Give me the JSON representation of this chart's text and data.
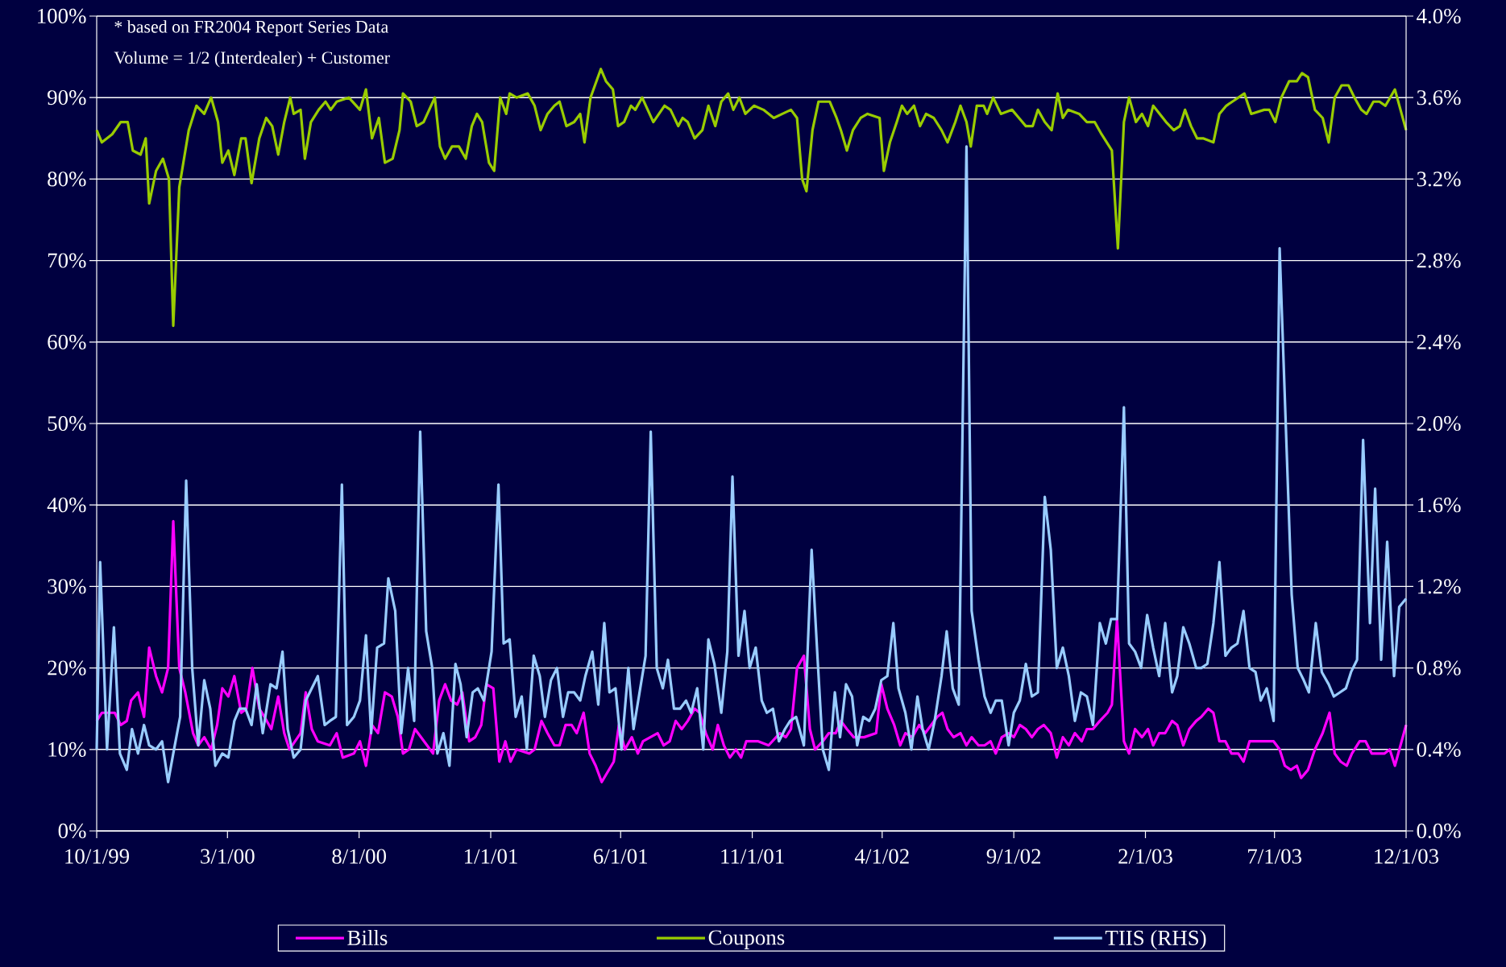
{
  "chart_data": {
    "type": "line",
    "annotations": [
      "*  based on FR2004 Report Series Data",
      "Volume = 1/2 (Interdealer) + Customer"
    ],
    "xlim": [
      "1999-10-01",
      "2003-12-01"
    ],
    "xticks": [
      {
        "value": "1999-10-01",
        "label": "10/1/99"
      },
      {
        "value": "2000-03-01",
        "label": "3/1/00"
      },
      {
        "value": "2000-08-01",
        "label": "8/1/00"
      },
      {
        "value": "2001-01-01",
        "label": "1/1/01"
      },
      {
        "value": "2001-06-01",
        "label": "6/1/01"
      },
      {
        "value": "2001-11-01",
        "label": "11/1/01"
      },
      {
        "value": "2002-04-01",
        "label": "4/1/02"
      },
      {
        "value": "2002-09-01",
        "label": "9/1/02"
      },
      {
        "value": "2003-02-01",
        "label": "2/1/03"
      },
      {
        "value": "2003-07-01",
        "label": "7/1/03"
      },
      {
        "value": "2003-12-01",
        "label": "12/1/03"
      }
    ],
    "ylim": [
      0,
      100
    ],
    "yticks": [
      {
        "value": 0,
        "label": "0%"
      },
      {
        "value": 10,
        "label": "10%"
      },
      {
        "value": 20,
        "label": "20%"
      },
      {
        "value": 30,
        "label": "30%"
      },
      {
        "value": 40,
        "label": "40%"
      },
      {
        "value": 50,
        "label": "50%"
      },
      {
        "value": 60,
        "label": "60%"
      },
      {
        "value": 70,
        "label": "70%"
      },
      {
        "value": 80,
        "label": "80%"
      },
      {
        "value": 90,
        "label": "90%"
      },
      {
        "value": 100,
        "label": "100%"
      }
    ],
    "y2lim": [
      0,
      4
    ],
    "y2ticks": [
      {
        "value": 0,
        "label": "0.0%"
      },
      {
        "value": 0.4,
        "label": "0.4%"
      },
      {
        "value": 0.8,
        "label": "0.8%"
      },
      {
        "value": 1.2,
        "label": "1.2%"
      },
      {
        "value": 1.6,
        "label": "1.6%"
      },
      {
        "value": 2.0,
        "label": "2.0%"
      },
      {
        "value": 2.4,
        "label": "2.4%"
      },
      {
        "value": 2.8,
        "label": "2.8%"
      },
      {
        "value": 3.2,
        "label": "3.2%"
      },
      {
        "value": 3.6,
        "label": "3.6%"
      },
      {
        "value": 4.0,
        "label": "4.0%"
      }
    ],
    "grid": "y",
    "legend": "bottom",
    "series": [
      {
        "name": "Bills",
        "color": "#ff00ff",
        "x": [
          "1999-10-01",
          "1999-10-07",
          "1999-10-22",
          "1999-10-29",
          "1999-11-05",
          "1999-11-10",
          "1999-11-18",
          "1999-11-25",
          "1999-12-01",
          "1999-12-09",
          "1999-12-16",
          "1999-12-23",
          "1999-12-29",
          "2000-01-05",
          "2000-01-12",
          "2000-01-21",
          "2000-01-27",
          "2000-02-03",
          "2000-02-11",
          "2000-02-18",
          "2000-02-24",
          "2000-03-02",
          "2000-03-09",
          "2000-03-17",
          "2000-03-23",
          "2000-03-30",
          "2000-04-07",
          "2000-04-13",
          "2000-04-21",
          "2000-04-29",
          "2000-05-06",
          "2000-05-12",
          "2000-05-25",
          "2000-05-31",
          "2000-06-07",
          "2000-06-14",
          "2000-06-28",
          "2000-07-06",
          "2000-07-13",
          "2000-07-26",
          "2000-08-02",
          "2000-08-09",
          "2000-08-16",
          "2000-08-23",
          "2000-08-31",
          "2000-09-08",
          "2000-09-15",
          "2000-09-21",
          "2000-09-28",
          "2000-10-05",
          "2000-10-19",
          "2000-10-26",
          "2000-11-02",
          "2000-11-09",
          "2000-11-16",
          "2000-11-23",
          "2000-11-29",
          "2000-12-07",
          "2000-12-14",
          "2000-12-21",
          "2000-12-27",
          "2001-01-04",
          "2001-01-11",
          "2001-01-18",
          "2001-01-24",
          "2001-01-31",
          "2001-02-15",
          "2001-02-21",
          "2001-03-01",
          "2001-03-08",
          "2001-03-16",
          "2001-03-22",
          "2001-03-29",
          "2001-04-05",
          "2001-04-11",
          "2001-04-19",
          "2001-04-26",
          "2001-05-03",
          "2001-05-10",
          "2001-05-24",
          "2001-05-30",
          "2001-06-06",
          "2001-06-14",
          "2001-06-21",
          "2001-06-27",
          "2001-07-14",
          "2001-07-21",
          "2001-07-28",
          "2001-08-04",
          "2001-08-11",
          "2001-08-18",
          "2001-08-26",
          "2001-09-01",
          "2001-09-08",
          "2001-09-16",
          "2001-09-22",
          "2001-09-29",
          "2001-10-06",
          "2001-10-13",
          "2001-10-19",
          "2001-10-25",
          "2001-11-08",
          "2001-11-20",
          "2001-12-03",
          "2001-12-10",
          "2001-12-16",
          "2001-12-23",
          "2001-12-31",
          "2002-01-07",
          "2002-01-13",
          "2002-01-22",
          "2002-01-29",
          "2002-02-06",
          "2002-02-12",
          "2002-02-19",
          "2002-02-27",
          "2002-03-11",
          "2002-03-25",
          "2002-03-31",
          "2002-04-07",
          "2002-04-15",
          "2002-04-22",
          "2002-04-28",
          "2002-05-06",
          "2002-05-14",
          "2002-05-21",
          "2002-05-28",
          "2002-06-04",
          "2002-06-10",
          "2002-06-16",
          "2002-06-23",
          "2002-07-01",
          "2002-07-08",
          "2002-07-14",
          "2002-07-22",
          "2002-07-29",
          "2002-08-05",
          "2002-08-11",
          "2002-08-18",
          "2002-08-26",
          "2002-09-01",
          "2002-09-08",
          "2002-09-15",
          "2002-09-22",
          "2002-09-29",
          "2002-10-06",
          "2002-10-14",
          "2002-10-21",
          "2002-10-28",
          "2002-11-04",
          "2002-11-11",
          "2002-11-19",
          "2002-11-25",
          "2002-12-02",
          "2002-12-10",
          "2002-12-19",
          "2002-12-24",
          "2002-12-30",
          "2003-01-07",
          "2003-01-13",
          "2003-01-20",
          "2003-01-28",
          "2003-02-04",
          "2003-02-10",
          "2003-02-17",
          "2003-02-24",
          "2003-03-04",
          "2003-03-10",
          "2003-03-17",
          "2003-03-24",
          "2003-04-01",
          "2003-04-07",
          "2003-04-15",
          "2003-04-21",
          "2003-04-28",
          "2003-05-05",
          "2003-05-12",
          "2003-05-20",
          "2003-05-26",
          "2003-06-02",
          "2003-06-30",
          "2003-07-07",
          "2003-07-13",
          "2003-07-20",
          "2003-07-27",
          "2003-08-01",
          "2003-08-09",
          "2003-08-17",
          "2003-08-26",
          "2003-09-03",
          "2003-09-09",
          "2003-09-16",
          "2003-09-23",
          "2003-09-29",
          "2003-10-08",
          "2003-10-15",
          "2003-10-22",
          "2003-11-06",
          "2003-11-12",
          "2003-11-18",
          "2003-12-01"
        ],
        "values": [
          13.5,
          14.5,
          14.5,
          13,
          13.5,
          16,
          17,
          14,
          22.5,
          19,
          17,
          20,
          38,
          20,
          17,
          12,
          10.5,
          11.5,
          10,
          13,
          17.5,
          16.5,
          19,
          14.5,
          15,
          20,
          15,
          14,
          12.5,
          16.5,
          12,
          10,
          12,
          17,
          12.5,
          11,
          10.5,
          12,
          9,
          9.5,
          11,
          8,
          13,
          12,
          17,
          16.5,
          14,
          9.5,
          10,
          12.5,
          10.5,
          9.5,
          16,
          18,
          16,
          15.5,
          17,
          11,
          11.5,
          13,
          18,
          17.5,
          8.5,
          11,
          8.5,
          10,
          9.5,
          10,
          13.5,
          12,
          10.5,
          10.5,
          13,
          13,
          12,
          14.5,
          9.5,
          8,
          6,
          8.5,
          13,
          10,
          11.5,
          9.5,
          11,
          12,
          10.5,
          11,
          13.5,
          12.5,
          13.5,
          15,
          14.5,
          12,
          10,
          13,
          10.5,
          9,
          10,
          9,
          11,
          11,
          10.5,
          12,
          11.5,
          12.5,
          20,
          21.5,
          12.5,
          10,
          11,
          12,
          12,
          13.5,
          12.5,
          11.5,
          11.5,
          12,
          18,
          15,
          13,
          10.5,
          12,
          11.5,
          13,
          12,
          13,
          14,
          14.5,
          12.5,
          11.5,
          12,
          10.5,
          11.5,
          10.5,
          10.5,
          11,
          9.5,
          11.5,
          12,
          11.5,
          13,
          12.5,
          11.5,
          12.5,
          13,
          12,
          9,
          11.5,
          10.5,
          12,
          11,
          12.5,
          12.5,
          13.5,
          14.5,
          15.5,
          26,
          11,
          9.5,
          12.5,
          11.5,
          12.5,
          10.5,
          12,
          12,
          13.5,
          13,
          10.5,
          12.5,
          13.5,
          14,
          15,
          14.5,
          11,
          11,
          9.5,
          9.5,
          8.5,
          11,
          11,
          10,
          8,
          7.5,
          8,
          6.5,
          7.5,
          10,
          12,
          14.5,
          9.5,
          8.5,
          8,
          9.5,
          11,
          11,
          9.5,
          9.5,
          10,
          8,
          13
        ]
      },
      {
        "name": "Coupons",
        "color": "#99cc00",
        "x": [
          "1999-10-01",
          "1999-10-07",
          "1999-10-19",
          "1999-10-29",
          "1999-11-06",
          "1999-11-12",
          "1999-11-21",
          "1999-11-27",
          "1999-12-01",
          "1999-12-09",
          "1999-12-17",
          "1999-12-24",
          "1999-12-29",
          "2000-01-05",
          "2000-01-16",
          "2000-01-25",
          "2000-02-03",
          "2000-02-11",
          "2000-02-19",
          "2000-02-24",
          "2000-03-02",
          "2000-03-09",
          "2000-03-17",
          "2000-03-22",
          "2000-03-29",
          "2000-04-07",
          "2000-04-15",
          "2000-04-22",
          "2000-04-29",
          "2000-05-06",
          "2000-05-13",
          "2000-05-17",
          "2000-05-25",
          "2000-05-30",
          "2000-06-06",
          "2000-06-15",
          "2000-06-23",
          "2000-06-29",
          "2000-07-06",
          "2000-07-20",
          "2000-08-02",
          "2000-08-09",
          "2000-08-16",
          "2000-08-24",
          "2000-08-31",
          "2000-09-09",
          "2000-09-17",
          "2000-09-21",
          "2000-09-30",
          "2000-10-07",
          "2000-10-15",
          "2000-10-28",
          "2000-11-03",
          "2000-11-09",
          "2000-11-17",
          "2000-11-25",
          "2000-12-03",
          "2000-12-10",
          "2000-12-16",
          "2000-12-22",
          "2000-12-30",
          "2001-01-05",
          "2001-01-12",
          "2001-01-19",
          "2001-01-23",
          "2001-01-31",
          "2001-02-13",
          "2001-02-21",
          "2001-02-28",
          "2001-03-08",
          "2001-03-16",
          "2001-03-22",
          "2001-03-30",
          "2001-04-08",
          "2001-04-15",
          "2001-04-20",
          "2001-04-27",
          "2001-05-09",
          "2001-05-15",
          "2001-05-23",
          "2001-05-29",
          "2001-06-05",
          "2001-06-13",
          "2001-06-18",
          "2001-06-26",
          "2001-07-09",
          "2001-07-22",
          "2001-07-29",
          "2001-08-07",
          "2001-08-12",
          "2001-08-18",
          "2001-08-26",
          "2001-09-04",
          "2001-09-11",
          "2001-09-19",
          "2001-09-26",
          "2001-10-04",
          "2001-10-10",
          "2001-10-17",
          "2001-10-24",
          "2001-11-03",
          "2001-11-14",
          "2001-11-26",
          "2001-12-06",
          "2001-12-16",
          "2001-12-23",
          "2001-12-29",
          "2002-01-03",
          "2002-01-10",
          "2002-01-17",
          "2002-01-30",
          "2002-02-07",
          "2002-02-12",
          "2002-02-19",
          "2002-02-26",
          "2002-03-07",
          "2002-03-15",
          "2002-03-29",
          "2002-04-03",
          "2002-04-10",
          "2002-04-18",
          "2002-04-24",
          "2002-04-30",
          "2002-05-08",
          "2002-05-15",
          "2002-05-22",
          "2002-05-31",
          "2002-06-09",
          "2002-06-16",
          "2002-06-25",
          "2002-07-01",
          "2002-07-08",
          "2002-07-13",
          "2002-07-20",
          "2002-07-28",
          "2002-08-01",
          "2002-08-08",
          "2002-08-17",
          "2002-08-30",
          "2002-09-07",
          "2002-09-15",
          "2002-09-23",
          "2002-09-29",
          "2002-10-07",
          "2002-10-15",
          "2002-10-22",
          "2002-10-28",
          "2002-11-03",
          "2002-11-16",
          "2002-11-25",
          "2002-12-04",
          "2002-12-12",
          "2002-12-24",
          "2002-12-31",
          "2003-01-07",
          "2003-01-13",
          "2003-01-21",
          "2003-01-28",
          "2003-02-04",
          "2003-02-10",
          "2003-02-25",
          "2003-03-06",
          "2003-03-13",
          "2003-03-19",
          "2003-03-26",
          "2003-04-02",
          "2003-04-09",
          "2003-04-21",
          "2003-04-28",
          "2003-05-06",
          "2003-05-13",
          "2003-05-27",
          "2003-06-04",
          "2003-06-19",
          "2003-06-25",
          "2003-07-02",
          "2003-07-09",
          "2003-07-18",
          "2003-07-27",
          "2003-08-02",
          "2003-08-09",
          "2003-08-17",
          "2003-08-26",
          "2003-09-02",
          "2003-09-09",
          "2003-09-17",
          "2003-09-25",
          "2003-10-02",
          "2003-10-10",
          "2003-10-16",
          "2003-10-24",
          "2003-10-31",
          "2003-11-07",
          "2003-11-18",
          "2003-12-01"
        ],
        "values": [
          86,
          84.5,
          85.5,
          87,
          87,
          83.5,
          83,
          85,
          77,
          81,
          82.5,
          80,
          62,
          79,
          86,
          89,
          88,
          90,
          87,
          82,
          83.5,
          80.5,
          85,
          85,
          79.5,
          85,
          87.5,
          86.5,
          83,
          87,
          90,
          88,
          88.5,
          82.5,
          87,
          88.5,
          89.5,
          88.5,
          89.5,
          90,
          88.5,
          91,
          85,
          87.5,
          82,
          82.5,
          86,
          90.5,
          89.5,
          86.5,
          87,
          90,
          84,
          82.5,
          84,
          84,
          82.5,
          86.5,
          88,
          87,
          82,
          81,
          90,
          88,
          90.5,
          90,
          90.5,
          89,
          86,
          88,
          89,
          89.5,
          86.5,
          87,
          88,
          84.5,
          90,
          93.5,
          92,
          91,
          86.5,
          87,
          89,
          88.5,
          90,
          87,
          89,
          88.5,
          86.5,
          87.5,
          87,
          85,
          86,
          89,
          86.5,
          89.5,
          90.5,
          88.5,
          90,
          88,
          89,
          88.5,
          87.5,
          88,
          88.5,
          87.5,
          80,
          78.5,
          86,
          89.5,
          89.5,
          87.5,
          86,
          83.5,
          86,
          87.5,
          88,
          87.5,
          81,
          84.5,
          87,
          89,
          88,
          89,
          86.5,
          88,
          87.5,
          86,
          84.5,
          87,
          89,
          87,
          84,
          89,
          89,
          88,
          90,
          88,
          88.5,
          87.5,
          86.5,
          86.5,
          88.5,
          87,
          86,
          90.5,
          87.5,
          88.5,
          88,
          87,
          87,
          85.5,
          83.5,
          71.5,
          87,
          90,
          87,
          88,
          86.5,
          89,
          87,
          86,
          86.5,
          88.5,
          86.5,
          85,
          85,
          84.5,
          88,
          89,
          89.5,
          90.5,
          88,
          88.5,
          88.5,
          87,
          90,
          92,
          92,
          93,
          92.5,
          88.5,
          87.5,
          84.5,
          90,
          91.5,
          91.5,
          90,
          88.5,
          88,
          89.5,
          89.5,
          89,
          91,
          86
        ]
      },
      {
        "name": "TIIS (RHS)",
        "color": "#99ccff",
        "axis": "y2",
        "x": [
          "1999-10-01",
          "1999-10-05",
          "1999-10-13",
          "1999-10-21",
          "1999-10-28",
          "1999-11-05",
          "1999-11-11",
          "1999-11-18",
          "1999-11-25",
          "1999-12-01",
          "1999-12-09",
          "1999-12-16",
          "1999-12-23",
          "1999-12-29",
          "2000-01-06",
          "2000-01-13",
          "2000-01-20",
          "2000-01-27",
          "2000-02-03",
          "2000-02-10",
          "2000-02-16",
          "2000-02-24",
          "2000-03-02",
          "2000-03-09",
          "2000-03-15",
          "2000-03-22",
          "2000-03-29",
          "2000-04-04",
          "2000-04-11",
          "2000-04-20",
          "2000-04-27",
          "2000-05-04",
          "2000-05-10",
          "2000-05-17",
          "2000-05-25",
          "2000-05-31",
          "2000-06-14",
          "2000-06-22",
          "2000-06-28",
          "2000-07-05",
          "2000-07-12",
          "2000-07-18",
          "2000-07-26",
          "2000-08-02",
          "2000-08-09",
          "2000-08-15",
          "2000-08-22",
          "2000-08-30",
          "2000-09-04",
          "2000-09-12",
          "2000-09-19",
          "2000-09-27",
          "2000-10-04",
          "2000-10-11",
          "2000-10-18",
          "2000-10-25",
          "2000-10-31",
          "2000-11-07",
          "2000-11-14",
          "2000-11-21",
          "2000-11-27",
          "2000-12-04",
          "2000-12-11",
          "2000-12-17",
          "2000-12-24",
          "2001-01-02",
          "2001-01-10",
          "2001-01-16",
          "2001-01-23",
          "2001-01-30",
          "2001-02-06",
          "2001-02-12",
          "2001-02-20",
          "2001-02-27",
          "2001-03-05",
          "2001-03-12",
          "2001-03-19",
          "2001-03-26",
          "2001-04-01",
          "2001-04-08",
          "2001-04-15",
          "2001-04-21",
          "2001-04-29",
          "2001-05-06",
          "2001-05-13",
          "2001-05-19",
          "2001-05-26",
          "2001-06-02",
          "2001-06-10",
          "2001-06-16",
          "2001-06-23",
          "2001-06-30",
          "2001-07-06",
          "2001-07-13",
          "2001-07-20",
          "2001-07-26",
          "2001-08-02",
          "2001-08-09",
          "2001-08-16",
          "2001-08-22",
          "2001-08-29",
          "2001-09-05",
          "2001-09-11",
          "2001-09-18",
          "2001-09-26",
          "2001-10-03",
          "2001-10-09",
          "2001-10-16",
          "2001-10-23",
          "2001-10-29",
          "2001-11-05",
          "2001-11-12",
          "2001-11-18",
          "2001-11-25",
          "2001-12-02",
          "2001-12-09",
          "2001-12-15",
          "2001-12-22",
          "2001-12-31",
          "2002-01-09",
          "2002-01-16",
          "2002-01-22",
          "2002-01-29",
          "2002-02-05",
          "2002-02-11",
          "2002-02-18",
          "2002-02-25",
          "2002-03-03",
          "2002-03-10",
          "2002-03-17",
          "2002-03-24",
          "2002-03-31",
          "2002-04-07",
          "2002-04-14",
          "2002-04-20",
          "2002-04-28",
          "2002-05-05",
          "2002-05-12",
          "2002-05-18",
          "2002-05-25",
          "2002-06-01",
          "2002-06-09",
          "2002-06-15",
          "2002-06-22",
          "2002-06-29",
          "2002-07-08",
          "2002-07-14",
          "2002-07-22",
          "2002-07-29",
          "2002-08-05",
          "2002-08-11",
          "2002-08-18",
          "2002-08-26",
          "2002-09-01",
          "2002-09-08",
          "2002-09-15",
          "2002-09-22",
          "2002-09-29",
          "2002-10-07",
          "2002-10-14",
          "2002-10-21",
          "2002-10-28",
          "2002-11-04",
          "2002-11-11",
          "2002-11-18",
          "2002-11-25",
          "2002-12-02",
          "2002-12-10",
          "2002-12-17",
          "2002-12-23",
          "2002-12-30",
          "2003-01-07",
          "2003-01-13",
          "2003-01-20",
          "2003-01-27",
          "2003-02-03",
          "2003-02-10",
          "2003-02-17",
          "2003-02-24",
          "2003-03-04",
          "2003-03-10",
          "2003-03-17",
          "2003-03-24",
          "2003-04-01",
          "2003-04-07",
          "2003-04-14",
          "2003-04-21",
          "2003-04-28",
          "2003-05-05",
          "2003-05-12",
          "2003-05-19",
          "2003-05-26",
          "2003-06-02",
          "2003-06-09",
          "2003-06-15",
          "2003-06-22",
          "2003-06-30",
          "2003-07-07",
          "2003-07-21",
          "2003-07-28",
          "2003-08-04",
          "2003-08-10",
          "2003-08-18",
          "2003-08-25",
          "2003-09-02",
          "2003-09-08",
          "2003-09-15",
          "2003-09-22",
          "2003-09-28",
          "2003-10-05",
          "2003-10-12",
          "2003-10-20",
          "2003-10-26",
          "2003-11-02",
          "2003-11-09",
          "2003-11-17",
          "2003-11-23",
          "2003-12-01"
        ],
        "values": [
          0.4,
          1.32,
          0.4,
          1.0,
          0.38,
          0.3,
          0.5,
          0.38,
          0.52,
          0.42,
          0.4,
          0.44,
          0.24,
          0.38,
          0.56,
          1.72,
          0.8,
          0.42,
          0.74,
          0.6,
          0.32,
          0.38,
          0.36,
          0.54,
          0.6,
          0.6,
          0.52,
          0.72,
          0.48,
          0.72,
          0.7,
          0.88,
          0.5,
          0.36,
          0.4,
          0.64,
          0.76,
          0.52,
          0.54,
          0.56,
          1.7,
          0.52,
          0.56,
          0.64,
          0.96,
          0.48,
          0.9,
          0.92,
          1.24,
          1.08,
          0.48,
          0.8,
          0.54,
          1.96,
          0.98,
          0.8,
          0.38,
          0.48,
          0.32,
          0.82,
          0.72,
          0.46,
          0.68,
          0.7,
          0.64,
          0.88,
          1.7,
          0.92,
          0.94,
          0.56,
          0.66,
          0.4,
          0.86,
          0.76,
          0.56,
          0.74,
          0.8,
          0.56,
          0.68,
          0.68,
          0.64,
          0.76,
          0.88,
          0.62,
          1.02,
          0.68,
          0.7,
          0.4,
          0.8,
          0.5,
          0.68,
          0.86,
          1.96,
          0.8,
          0.7,
          0.84,
          0.6,
          0.6,
          0.64,
          0.58,
          0.7,
          0.4,
          0.94,
          0.82,
          0.58,
          0.88,
          1.74,
          0.86,
          1.08,
          0.8,
          0.9,
          0.64,
          0.58,
          0.6,
          0.44,
          0.5,
          0.54,
          0.56,
          0.42,
          1.38,
          0.84,
          0.4,
          0.3,
          0.68,
          0.46,
          0.72,
          0.66,
          0.42,
          0.56,
          0.54,
          0.6,
          0.74,
          0.76,
          1.02,
          0.7,
          0.58,
          0.4,
          0.66,
          0.5,
          0.4,
          0.54,
          0.76,
          0.98,
          0.7,
          0.62,
          3.36,
          1.08,
          0.84,
          0.66,
          0.58,
          0.64,
          0.64,
          0.42,
          0.58,
          0.64,
          0.82,
          0.66,
          0.68,
          1.64,
          1.38,
          0.8,
          0.9,
          0.76,
          0.54,
          0.68,
          0.66,
          0.52,
          1.02,
          0.92,
          1.04,
          1.04,
          2.08,
          0.92,
          0.88,
          0.8,
          1.06,
          0.9,
          0.76,
          1.02,
          0.68,
          0.76,
          1.0,
          0.92,
          0.8,
          0.8,
          0.82,
          1.02,
          1.32,
          0.86,
          0.9,
          0.92,
          1.08,
          0.8,
          0.78,
          0.64,
          0.7,
          0.54,
          2.86,
          1.16,
          0.8,
          0.74,
          0.68,
          1.02,
          0.78,
          0.72,
          0.66,
          0.68,
          0.7,
          0.78,
          0.84,
          1.92,
          1.02,
          1.68,
          0.84,
          1.42,
          0.76,
          1.1,
          1.14
        ]
      }
    ]
  }
}
